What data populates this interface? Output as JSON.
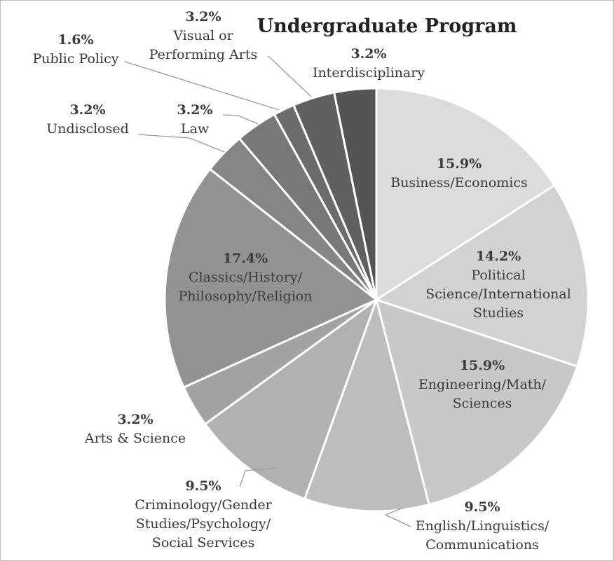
{
  "chart_data": {
    "type": "pie",
    "title": "Undergraduate Program",
    "slices": [
      {
        "label": "Business/Economics",
        "value": 15.9,
        "pct_label": "15.9%",
        "name_lines": [
          "Business/Economics"
        ],
        "color": "#dcdcdc"
      },
      {
        "label": "Political Science/International Studies",
        "value": 14.2,
        "pct_label": "14.2%",
        "name_lines": [
          "Political",
          "Science/International",
          "Studies"
        ],
        "color": "#d2d2d2"
      },
      {
        "label": "Engineering/Math/Sciences",
        "value": 15.9,
        "pct_label": "15.9%",
        "name_lines": [
          "Engineering/Math/",
          "Sciences"
        ],
        "color": "#c8c8c8"
      },
      {
        "label": "English/Linguistics/Communications",
        "value": 9.5,
        "pct_label": "9.5%",
        "name_lines": [
          "English/Linguistics/",
          "Communications"
        ],
        "color": "#bdbdbd"
      },
      {
        "label": "Criminology/Gender Studies/Psychology/Social Services",
        "value": 9.5,
        "pct_label": "9.5%",
        "name_lines": [
          "Criminology/Gender",
          "Studies/Psychology/",
          "Social Services"
        ],
        "color": "#b1b1b1"
      },
      {
        "label": "Arts & Science",
        "value": 3.2,
        "pct_label": "3.2%",
        "name_lines": [
          "Arts & Science"
        ],
        "color": "#a3a3a3"
      },
      {
        "label": "Classics/History/Philosophy/Religion",
        "value": 17.4,
        "pct_label": "17.4%",
        "name_lines": [
          "Classics/History/",
          "Philosophy/Religion"
        ],
        "color": "#939393"
      },
      {
        "label": "Undisclosed",
        "value": 3.2,
        "pct_label": "3.2%",
        "name_lines": [
          "Undisclosed"
        ],
        "color": "#858585"
      },
      {
        "label": "Law",
        "value": 3.2,
        "pct_label": "3.2%",
        "name_lines": [
          "Law"
        ],
        "color": "#787878"
      },
      {
        "label": "Public Policy",
        "value": 1.6,
        "pct_label": "1.6%",
        "name_lines": [
          "Public Policy"
        ],
        "color": "#6c6c6c"
      },
      {
        "label": "Visual or Performing Arts",
        "value": 3.2,
        "pct_label": "3.2%",
        "name_lines": [
          "Visual or",
          "Performing Arts"
        ],
        "color": "#606060"
      },
      {
        "label": "Interdisciplinary",
        "value": 3.2,
        "pct_label": "3.2%",
        "name_lines": [
          "Interdisciplinary"
        ],
        "color": "#545454"
      }
    ]
  }
}
